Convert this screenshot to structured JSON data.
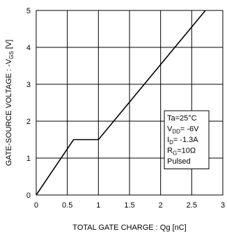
{
  "chart_data": {
    "type": "line",
    "xlabel": "TOTAL GATE CHARGE : Qg  [nC]",
    "ylabel_parts": [
      "GATE-SOURCE VOLTAGE : -V",
      "GS",
      " [V]"
    ],
    "xlim": [
      0,
      3
    ],
    "ylim": [
      0,
      5
    ],
    "x_ticks": [
      "0",
      "0.5",
      "1",
      "1.5",
      "2",
      "2.5",
      "3"
    ],
    "y_ticks": [
      "0",
      "1",
      "2",
      "3",
      "4",
      "5"
    ],
    "grid": true,
    "series": [
      {
        "x": [
          0,
          0.6,
          1.0,
          2.72
        ],
        "y": [
          0,
          1.5,
          1.5,
          5.0
        ]
      }
    ],
    "conditions": [
      {
        "main": "Ta=25°C"
      },
      {
        "main": "V",
        "sub": "DD",
        "rest": "= -6V"
      },
      {
        "main": "I",
        "sub": "D",
        "rest": "= -1.3A"
      },
      {
        "main": "R",
        "sub": "G",
        "rest": "=10Ω"
      },
      {
        "main": "Pulsed"
      }
    ]
  }
}
